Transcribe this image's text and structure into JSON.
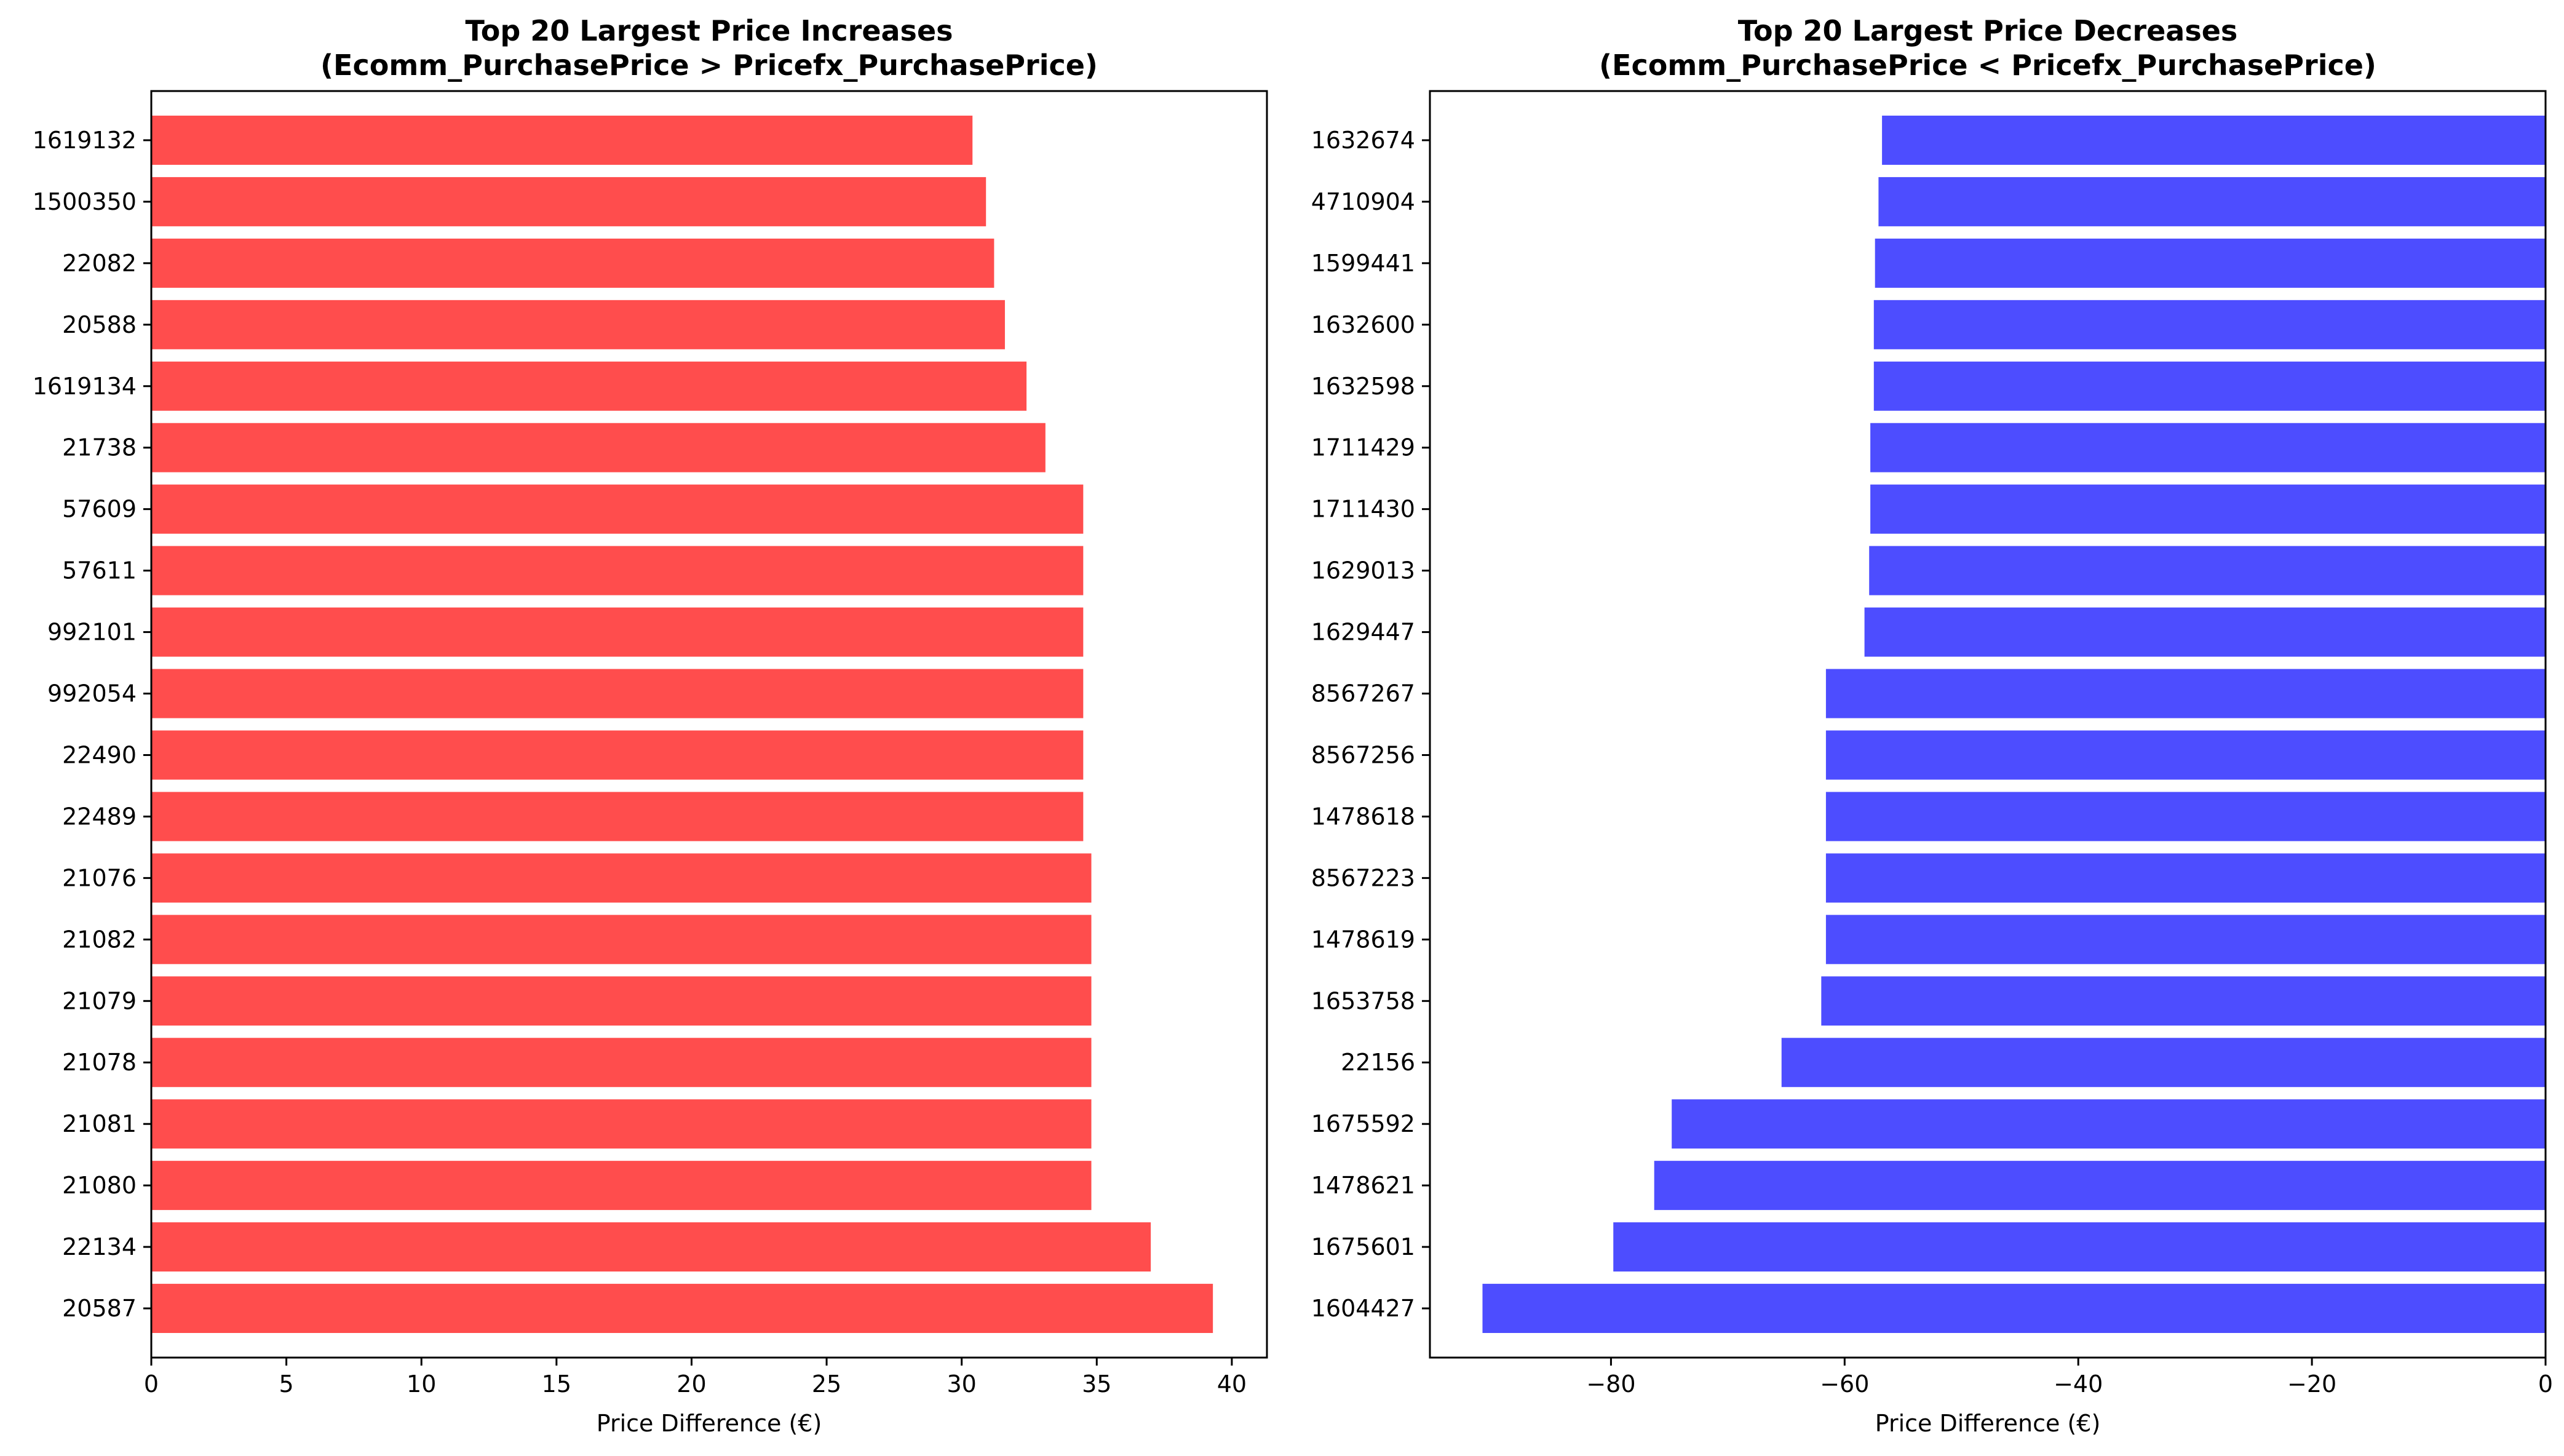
{
  "chart_data": [
    {
      "type": "bar",
      "orientation": "horizontal",
      "title": [
        "Top 20 Largest Price Increases",
        "(Ecomm_PurchasePrice > Pricefx_PurchasePrice)"
      ],
      "xlabel": "Price Difference (€)",
      "ylabel": "",
      "color": "#ff4d4d",
      "xlim": [
        0,
        41.3
      ],
      "xticks": [
        0,
        5,
        10,
        15,
        20,
        25,
        30,
        35,
        40
      ],
      "grid": false,
      "categories": [
        "1619132",
        "1500350",
        "22082",
        "20588",
        "1619134",
        "21738",
        "57609",
        "57611",
        "992101",
        "992054",
        "22490",
        "22489",
        "21076",
        "21082",
        "21079",
        "21078",
        "21081",
        "21080",
        "22134",
        "20587"
      ],
      "values": [
        30.4,
        30.9,
        31.2,
        31.6,
        32.4,
        33.1,
        34.5,
        34.5,
        34.5,
        34.5,
        34.5,
        34.5,
        34.8,
        34.8,
        34.8,
        34.8,
        34.8,
        34.8,
        37.0,
        39.3
      ]
    },
    {
      "type": "bar",
      "orientation": "horizontal",
      "title": [
        "Top 20 Largest Price Decreases",
        "(Ecomm_PurchasePrice < Pricefx_PurchasePrice)"
      ],
      "xlabel": "Price Difference (€)",
      "ylabel": "",
      "color": "#4d4dff",
      "xlim": [
        -95.5,
        0
      ],
      "xticks": [
        -80,
        -60,
        -40,
        -20,
        0
      ],
      "xtick_labels": [
        "−80",
        "−60",
        "−40",
        "−20",
        "0"
      ],
      "grid": false,
      "categories": [
        "1632674",
        "4710904",
        "1599441",
        "1632600",
        "1632598",
        "1711429",
        "1711430",
        "1629013",
        "1629447",
        "8567267",
        "8567256",
        "1478618",
        "8567223",
        "1478619",
        "1653758",
        "22156",
        "1675592",
        "1478621",
        "1675601",
        "1604427"
      ],
      "values": [
        -56.8,
        -57.1,
        -57.4,
        -57.5,
        -57.5,
        -57.8,
        -57.8,
        -57.9,
        -58.3,
        -61.6,
        -61.6,
        -61.6,
        -61.6,
        -61.6,
        -62.0,
        -65.4,
        -74.8,
        -76.3,
        -79.8,
        -91.0
      ]
    }
  ]
}
